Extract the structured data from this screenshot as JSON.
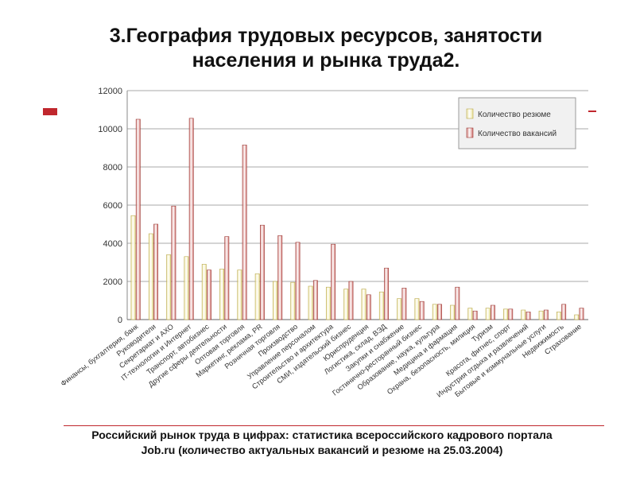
{
  "slide": {
    "title": "3.География трудовых ресурсов, занятости\nнаселения и рынка труда2.",
    "caption_line1": "Российский рынок труда в цифрах: статистика всероссийского кадрового портала",
    "caption_line2": "Job.ru (количество актуальных вакансий и резюме на 25.03.2004)"
  },
  "colors": {
    "resume": "#ece39a",
    "vacancy": "#cf6e6a",
    "accent": "#c0272d"
  },
  "chart_data": {
    "type": "bar",
    "ylim": [
      0,
      12000
    ],
    "yticks": [
      0,
      2000,
      4000,
      6000,
      8000,
      10000,
      12000
    ],
    "grid": true,
    "legend_position": "top-right",
    "categories": [
      "Финансы, бухгалтерия, банк",
      "Руководители",
      "Секретариат и АХО",
      "IT-технологии и Интернет",
      "Транспорт, автобизнес",
      "Другие сферы деятельности",
      "Оптовая торговля",
      "Маркетинг, реклама, PR",
      "Розничная торговля",
      "Производство",
      "Управление персоналом",
      "Строительство и архитектура",
      "СМИ, издательский бизнес",
      "Юриспруденция",
      "Логистика, склад, ВЭД",
      "Закупки и снабжение",
      "Гостинично-ресторанный бизнес",
      "Образование, наука, культура",
      "Медицина и фармация",
      "Охрана, безопасность, милиция",
      "Туризм",
      "Красота, фитнес, спорт",
      "Индустрия отдыха и развлечений",
      "Бытовые и коммунальные услуги",
      "Недвижимость",
      "Страхование"
    ],
    "series": [
      {
        "name": "Количество резюме",
        "values": [
          5450,
          4500,
          3400,
          3300,
          2900,
          2650,
          2600,
          2400,
          2000,
          1950,
          1750,
          1700,
          1600,
          1600,
          1450,
          1100,
          1100,
          800,
          750,
          600,
          600,
          550,
          500,
          450,
          400,
          250
        ]
      },
      {
        "name": "Количество вакансий",
        "values": [
          10500,
          5000,
          5950,
          10550,
          2600,
          4350,
          9150,
          4950,
          4400,
          4050,
          2050,
          3950,
          2000,
          1300,
          2700,
          1650,
          950,
          800,
          1700,
          450,
          750,
          550,
          400,
          500,
          800,
          600
        ]
      }
    ]
  }
}
